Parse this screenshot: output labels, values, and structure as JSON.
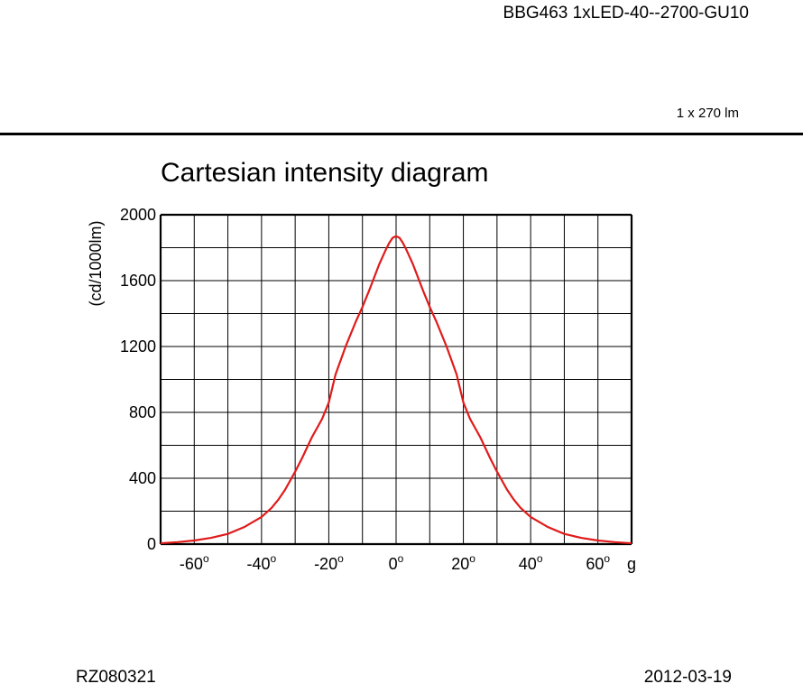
{
  "header": {
    "product": "BBG463 1xLED-40--2700-GU10",
    "flux": "1 x 270 lm"
  },
  "footer": {
    "code": "RZ080321",
    "date": "2012-03-19"
  },
  "colors": {
    "curve": "#e01b1b",
    "grid": "#000000"
  },
  "chart_data": {
    "type": "line",
    "title": "Cartesian intensity diagram",
    "ylabel": "(cd/1000lm)",
    "xlabel": "g",
    "xlim": [
      -70,
      70
    ],
    "ylim": [
      0,
      2000
    ],
    "grid": true,
    "x_ticks": [
      -60,
      -40,
      -20,
      0,
      20,
      40,
      60
    ],
    "y_ticks": [
      0,
      400,
      800,
      1200,
      1600,
      2000
    ],
    "series": [
      {
        "x": [
          -70,
          -65,
          -60,
          -55,
          -50,
          -45,
          -40,
          -37,
          -35,
          -33,
          -30,
          -28,
          -25,
          -22,
          -20,
          -18,
          -15,
          -12,
          -10,
          -8,
          -5,
          -3,
          -2,
          -1,
          0,
          1,
          2,
          3,
          5,
          8,
          10,
          12,
          15,
          18,
          20,
          22,
          25,
          28,
          30,
          33,
          35,
          37,
          40,
          45,
          50,
          55,
          60,
          65,
          70
        ],
        "y": [
          5,
          12,
          22,
          38,
          62,
          105,
          165,
          220,
          270,
          330,
          440,
          520,
          650,
          760,
          860,
          1030,
          1200,
          1350,
          1440,
          1540,
          1700,
          1790,
          1830,
          1860,
          1870,
          1860,
          1830,
          1790,
          1700,
          1540,
          1440,
          1350,
          1200,
          1030,
          860,
          760,
          650,
          520,
          440,
          330,
          270,
          220,
          165,
          105,
          62,
          38,
          22,
          12,
          5
        ]
      }
    ]
  }
}
